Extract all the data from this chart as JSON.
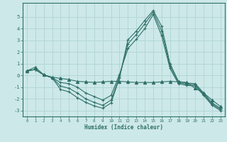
{
  "background_color": "#cde8e8",
  "grid_color": "#b0d4d4",
  "line_color": "#2e7068",
  "xlabel": "Humidex (Indice chaleur)",
  "xlim": [
    -0.5,
    23.5
  ],
  "ylim": [
    -3.5,
    6.2
  ],
  "xticks": [
    0,
    1,
    2,
    3,
    4,
    5,
    6,
    7,
    8,
    9,
    10,
    11,
    12,
    13,
    14,
    15,
    16,
    17,
    18,
    19,
    20,
    21,
    22,
    23
  ],
  "yticks": [
    -3,
    -2,
    -1,
    0,
    1,
    2,
    3,
    4,
    5
  ],
  "series": [
    {
      "x": [
        0,
        1,
        2,
        3,
        4,
        5,
        6,
        7,
        8,
        9,
        10,
        11,
        12,
        13,
        14,
        15,
        16,
        17,
        18,
        19,
        20,
        21,
        22,
        23
      ],
      "y": [
        0.4,
        0.7,
        0.05,
        -0.15,
        -0.25,
        -0.35,
        -0.5,
        -0.55,
        -0.6,
        -0.55,
        -0.5,
        -0.5,
        -0.55,
        -0.6,
        -0.6,
        -0.6,
        -0.55,
        -0.5,
        -0.55,
        -0.6,
        -1.1,
        -1.5,
        -2.1,
        -2.65
      ],
      "marker": "^",
      "ms": 3.0
    },
    {
      "x": [
        0,
        1,
        2,
        3,
        4,
        5,
        6,
        7,
        8,
        9,
        10,
        11,
        12,
        13,
        14,
        15,
        16,
        17,
        18,
        19,
        20,
        21,
        22,
        23
      ],
      "y": [
        0.4,
        0.5,
        0.05,
        -0.2,
        -1.2,
        -1.4,
        -1.9,
        -2.3,
        -2.6,
        -2.8,
        -2.35,
        -0.2,
        3.05,
        3.8,
        4.7,
        5.55,
        4.2,
        1.0,
        -0.5,
        -0.65,
        -0.7,
        -1.5,
        -2.35,
        -2.8
      ],
      "marker": "+",
      "ms": 3.5
    },
    {
      "x": [
        0,
        1,
        2,
        3,
        4,
        5,
        6,
        7,
        8,
        9,
        10,
        11,
        12,
        13,
        14,
        15,
        16,
        17,
        18,
        19,
        20,
        21,
        22,
        23
      ],
      "y": [
        0.4,
        0.5,
        0.05,
        -0.2,
        -0.9,
        -1.1,
        -1.5,
        -2.0,
        -2.3,
        -2.55,
        -2.1,
        -0.1,
        2.7,
        3.5,
        4.4,
        5.4,
        3.8,
        0.8,
        -0.6,
        -0.75,
        -0.8,
        -1.6,
        -2.45,
        -2.9
      ],
      "marker": "+",
      "ms": 3.5
    },
    {
      "x": [
        0,
        1,
        2,
        3,
        4,
        5,
        6,
        7,
        8,
        9,
        10,
        11,
        12,
        13,
        14,
        15,
        16,
        17,
        18,
        19,
        20,
        21,
        22,
        23
      ],
      "y": [
        0.4,
        0.5,
        0.05,
        -0.2,
        -0.6,
        -0.7,
        -1.0,
        -1.5,
        -1.8,
        -2.1,
        -1.7,
        0.1,
        2.3,
        3.1,
        4.0,
        5.2,
        3.4,
        0.6,
        -0.7,
        -0.85,
        -0.9,
        -1.7,
        -2.55,
        -3.0
      ],
      "marker": "+",
      "ms": 3.5
    }
  ]
}
